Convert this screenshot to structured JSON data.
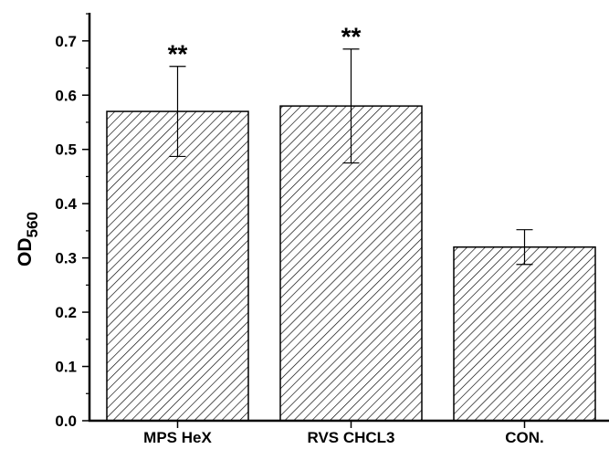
{
  "chart_data": {
    "type": "bar",
    "title": "",
    "xlabel": "",
    "ylabel_main": "OD",
    "ylabel_sub": "560",
    "categories": [
      "MPS HeX",
      "RVS CHCL3",
      "CON."
    ],
    "values": [
      0.57,
      0.58,
      0.32
    ],
    "errors": [
      0.083,
      0.105,
      0.032
    ],
    "significance": [
      "**",
      "**",
      ""
    ],
    "ylim": [
      0,
      0.75
    ],
    "yticks": [
      "0.0",
      "0.1",
      "0.2",
      "0.3",
      "0.4",
      "0.5",
      "0.6",
      "0.7"
    ],
    "bar_pattern": "diagonal-hatch",
    "bar_color": "#000000",
    "grid": false,
    "legend": "none"
  }
}
